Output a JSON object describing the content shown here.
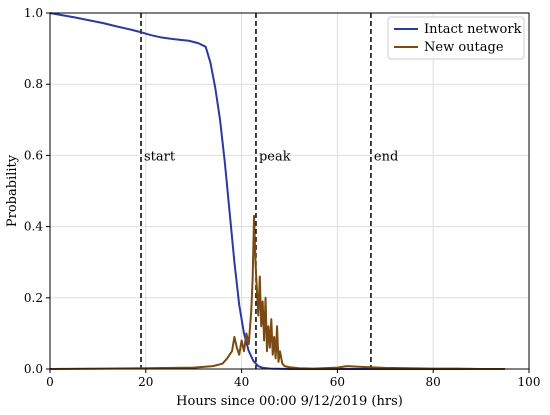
{
  "chart_data": {
    "type": "line",
    "title": "",
    "xlabel": "Hours since 00:00 9/12/2019 (hrs)",
    "ylabel": "Probability",
    "xlim": [
      0,
      100
    ],
    "ylim": [
      0,
      1.0
    ],
    "x_ticks": [
      0,
      20,
      40,
      60,
      80,
      100
    ],
    "y_ticks": [
      0.0,
      0.2,
      0.4,
      0.6,
      0.8,
      1.0
    ],
    "x_tick_labels": [
      "0",
      "20",
      "40",
      "60",
      "80",
      "100"
    ],
    "y_tick_labels": [
      "0.0",
      "0.2",
      "0.4",
      "0.6",
      "0.8",
      "1.0"
    ],
    "grid": true,
    "legend_position": "top-right",
    "series": [
      {
        "name": "Intact network",
        "color": "#2b3a9e",
        "x": [
          0,
          2,
          5,
          8,
          11,
          14,
          17,
          19,
          21,
          23,
          25,
          27,
          29,
          31,
          32.5,
          33.5,
          34.5,
          35.5,
          36.5,
          37.5,
          38.5,
          39.5,
          40.5,
          41.5,
          42.5,
          43.5,
          44.5,
          46,
          50,
          60,
          70,
          80,
          95
        ],
        "y": [
          1.0,
          0.995,
          0.988,
          0.98,
          0.972,
          0.962,
          0.953,
          0.946,
          0.938,
          0.932,
          0.928,
          0.925,
          0.922,
          0.915,
          0.905,
          0.86,
          0.79,
          0.7,
          0.58,
          0.44,
          0.3,
          0.18,
          0.1,
          0.05,
          0.022,
          0.008,
          0.003,
          0.001,
          0.0,
          0.0,
          0.0,
          0.0,
          0.0
        ]
      },
      {
        "name": "New outage",
        "color": "#7a4a12",
        "x": [
          0,
          10,
          20,
          30,
          34,
          36,
          37,
          38,
          38.5,
          39,
          39.5,
          40,
          40.5,
          41,
          41.5,
          42,
          42.3,
          42.6,
          42.9,
          43.2,
          43.5,
          43.8,
          44.1,
          44.4,
          44.7,
          45,
          45.3,
          45.6,
          45.9,
          46.2,
          46.5,
          46.8,
          47.1,
          47.4,
          47.7,
          48,
          48.5,
          49,
          50,
          52,
          55,
          60,
          62,
          65,
          70,
          75,
          80,
          85,
          90,
          95
        ],
        "y": [
          0,
          0.001,
          0.002,
          0.004,
          0.008,
          0.015,
          0.03,
          0.05,
          0.09,
          0.06,
          0.04,
          0.08,
          0.05,
          0.1,
          0.07,
          0.16,
          0.25,
          0.43,
          0.3,
          0.22,
          0.15,
          0.26,
          0.12,
          0.19,
          0.08,
          0.2,
          0.05,
          0.12,
          0.06,
          0.14,
          0.04,
          0.09,
          0.03,
          0.12,
          0.02,
          0.05,
          0.015,
          0.008,
          0.005,
          0.002,
          0.001,
          0.004,
          0.008,
          0.006,
          0.003,
          0.002,
          0.001,
          0.001,
          0.0,
          0.0
        ]
      }
    ],
    "vlines": [
      {
        "x": 19,
        "label": "start"
      },
      {
        "x": 43,
        "label": "peak"
      },
      {
        "x": 67,
        "label": "end"
      }
    ]
  }
}
